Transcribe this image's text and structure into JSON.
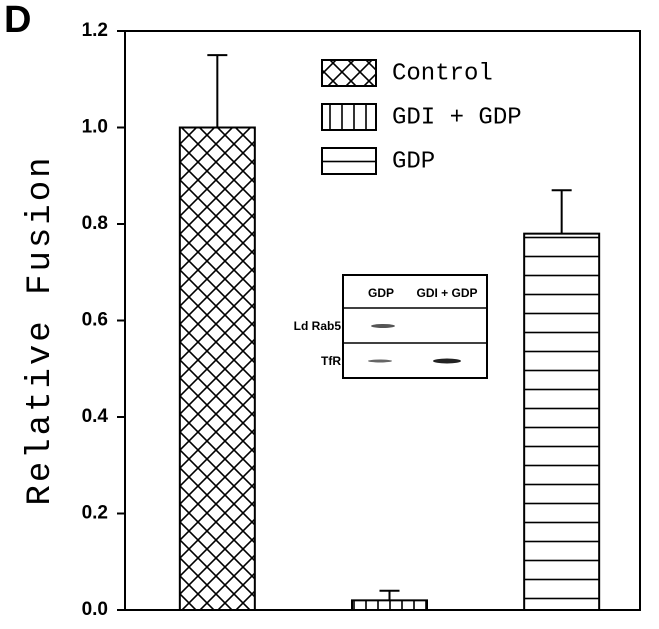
{
  "chart_data": {
    "type": "bar",
    "panel_label": "D",
    "ylabel": "Relative Fusion",
    "categories": [
      null
    ],
    "series": [
      {
        "name": "Control",
        "color": "#000000",
        "pattern": "crosshatch",
        "values": [
          1.0
        ],
        "errors": [
          0.15
        ]
      },
      {
        "name": "GDI + GDP",
        "color": "#000000",
        "pattern": "vertical",
        "values": [
          0.02
        ],
        "errors": [
          0.02
        ]
      },
      {
        "name": "GDP",
        "color": "#000000",
        "pattern": "horizontal",
        "values": [
          0.78
        ],
        "errors": [
          0.09
        ]
      }
    ],
    "ylim": [
      0,
      1.2
    ],
    "yticks": [
      {
        "value": 0,
        "label": "0.0"
      },
      0.2,
      0.4,
      0.6,
      0.8,
      {
        "value": 1,
        "label": "1.0"
      },
      1.2
    ],
    "legend": "top",
    "inset": {
      "columns": [
        "GDP",
        "GDI + GDP"
      ],
      "rows": [
        "Ld Rab5",
        "TfR"
      ]
    }
  }
}
